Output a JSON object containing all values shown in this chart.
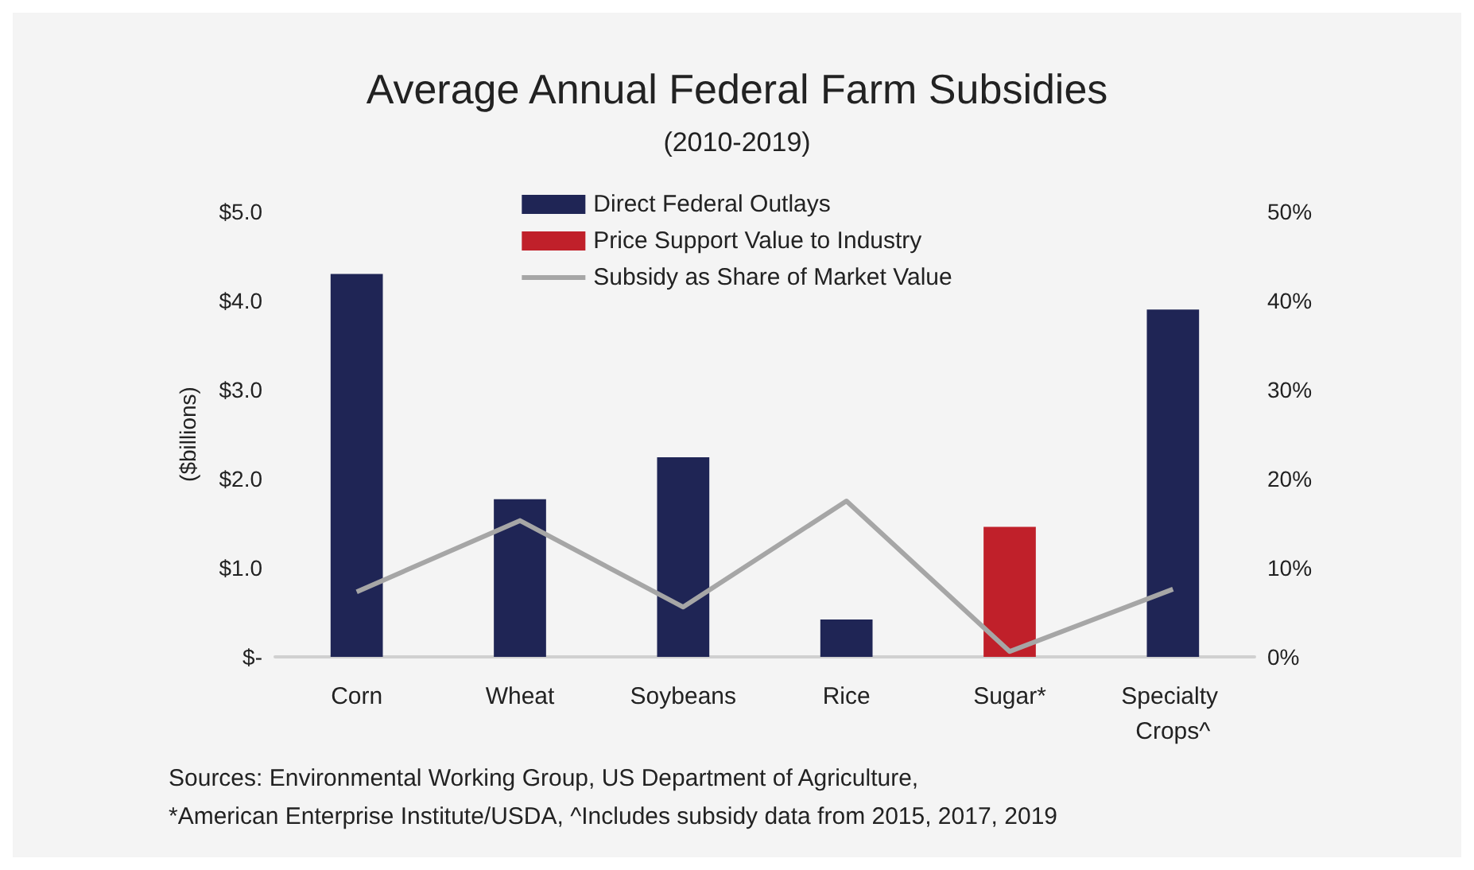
{
  "chart_data": {
    "type": "bar",
    "title": "Average Annual Federal Farm Subsidies",
    "subtitle": "(2010-2019)",
    "ylabel": "($billions)",
    "categories": [
      "Corn",
      "Wheat",
      "Soybeans",
      "Rice",
      "Sugar*",
      "Specialty Crops^"
    ],
    "series": [
      {
        "name": "Direct Federal Outlays",
        "color": "#1f2555",
        "values": [
          4.3,
          1.77,
          2.24,
          0.42,
          null,
          3.9
        ]
      },
      {
        "name": "Price Support Value to Industry",
        "color": "#c0202a",
        "values": [
          null,
          null,
          null,
          null,
          1.46,
          null
        ]
      },
      {
        "name": "Subsidy as Share of Market Value",
        "type": "line",
        "axis": "y2",
        "color": "#a6a6a6",
        "values": [
          7.3,
          15.3,
          5.6,
          17.5,
          0.6,
          7.6
        ]
      }
    ],
    "stacked": true,
    "ylim": [
      0,
      5
    ],
    "yticks": [
      {
        "value": 0,
        "label": "$-"
      },
      {
        "value": 1,
        "label": "$1.0"
      },
      {
        "value": 2,
        "label": "$2.0"
      },
      {
        "value": 3,
        "label": "$3.0"
      },
      {
        "value": 4,
        "label": "$4.0"
      },
      {
        "value": 5,
        "label": "$5.0"
      }
    ],
    "y2lim": [
      0,
      50
    ],
    "y2ticks": [
      {
        "value": 0,
        "label": "0%"
      },
      {
        "value": 10,
        "label": "10%"
      },
      {
        "value": 20,
        "label": "20%"
      },
      {
        "value": 30,
        "label": "30%"
      },
      {
        "value": 40,
        "label": "40%"
      },
      {
        "value": 50,
        "label": "50%"
      }
    ],
    "grid": false,
    "legend": "top",
    "marker": "none",
    "annotations": [
      "Sources: Environmental Working Group, US Department of Agriculture,",
      "*American Enterprise Institute/USDA, ^Includes subsidy data from 2015, 2017, 2019"
    ]
  }
}
